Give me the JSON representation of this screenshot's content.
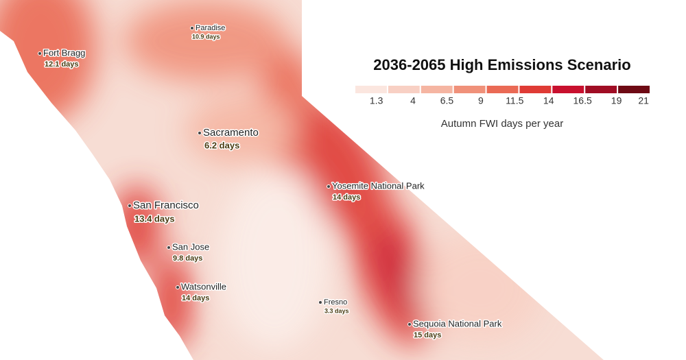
{
  "title": "2036-2065 High Emissions Scenario",
  "legend": {
    "colors": [
      "#fbe6df",
      "#f8d0c4",
      "#f5b5a2",
      "#f0917a",
      "#ea6a55",
      "#df3b35",
      "#c8102e",
      "#a00d24",
      "#6e0a14"
    ],
    "ticks": [
      1.3,
      4,
      6.5,
      9,
      11.5,
      14,
      16.5,
      19,
      21
    ],
    "range": [
      -0.3,
      21.5
    ],
    "label": "Autumn FWI days per year"
  },
  "places": [
    {
      "name": "Paradise",
      "label": "10.9 days"
    },
    {
      "name": "Fort Bragg",
      "label": "12.1 days"
    },
    {
      "name": "Sacramento",
      "label": "6.2 days"
    },
    {
      "name": "Yosemite National Park",
      "label": "14 days"
    },
    {
      "name": "San Francisco",
      "label": "13.4 days"
    },
    {
      "name": "San Jose",
      "label": "9.8 days"
    },
    {
      "name": "Watsonville",
      "label": "14 days"
    },
    {
      "name": "Fresno",
      "label": "3.3 days"
    },
    {
      "name": "Sequoia National Park",
      "label": "15 days"
    }
  ]
}
